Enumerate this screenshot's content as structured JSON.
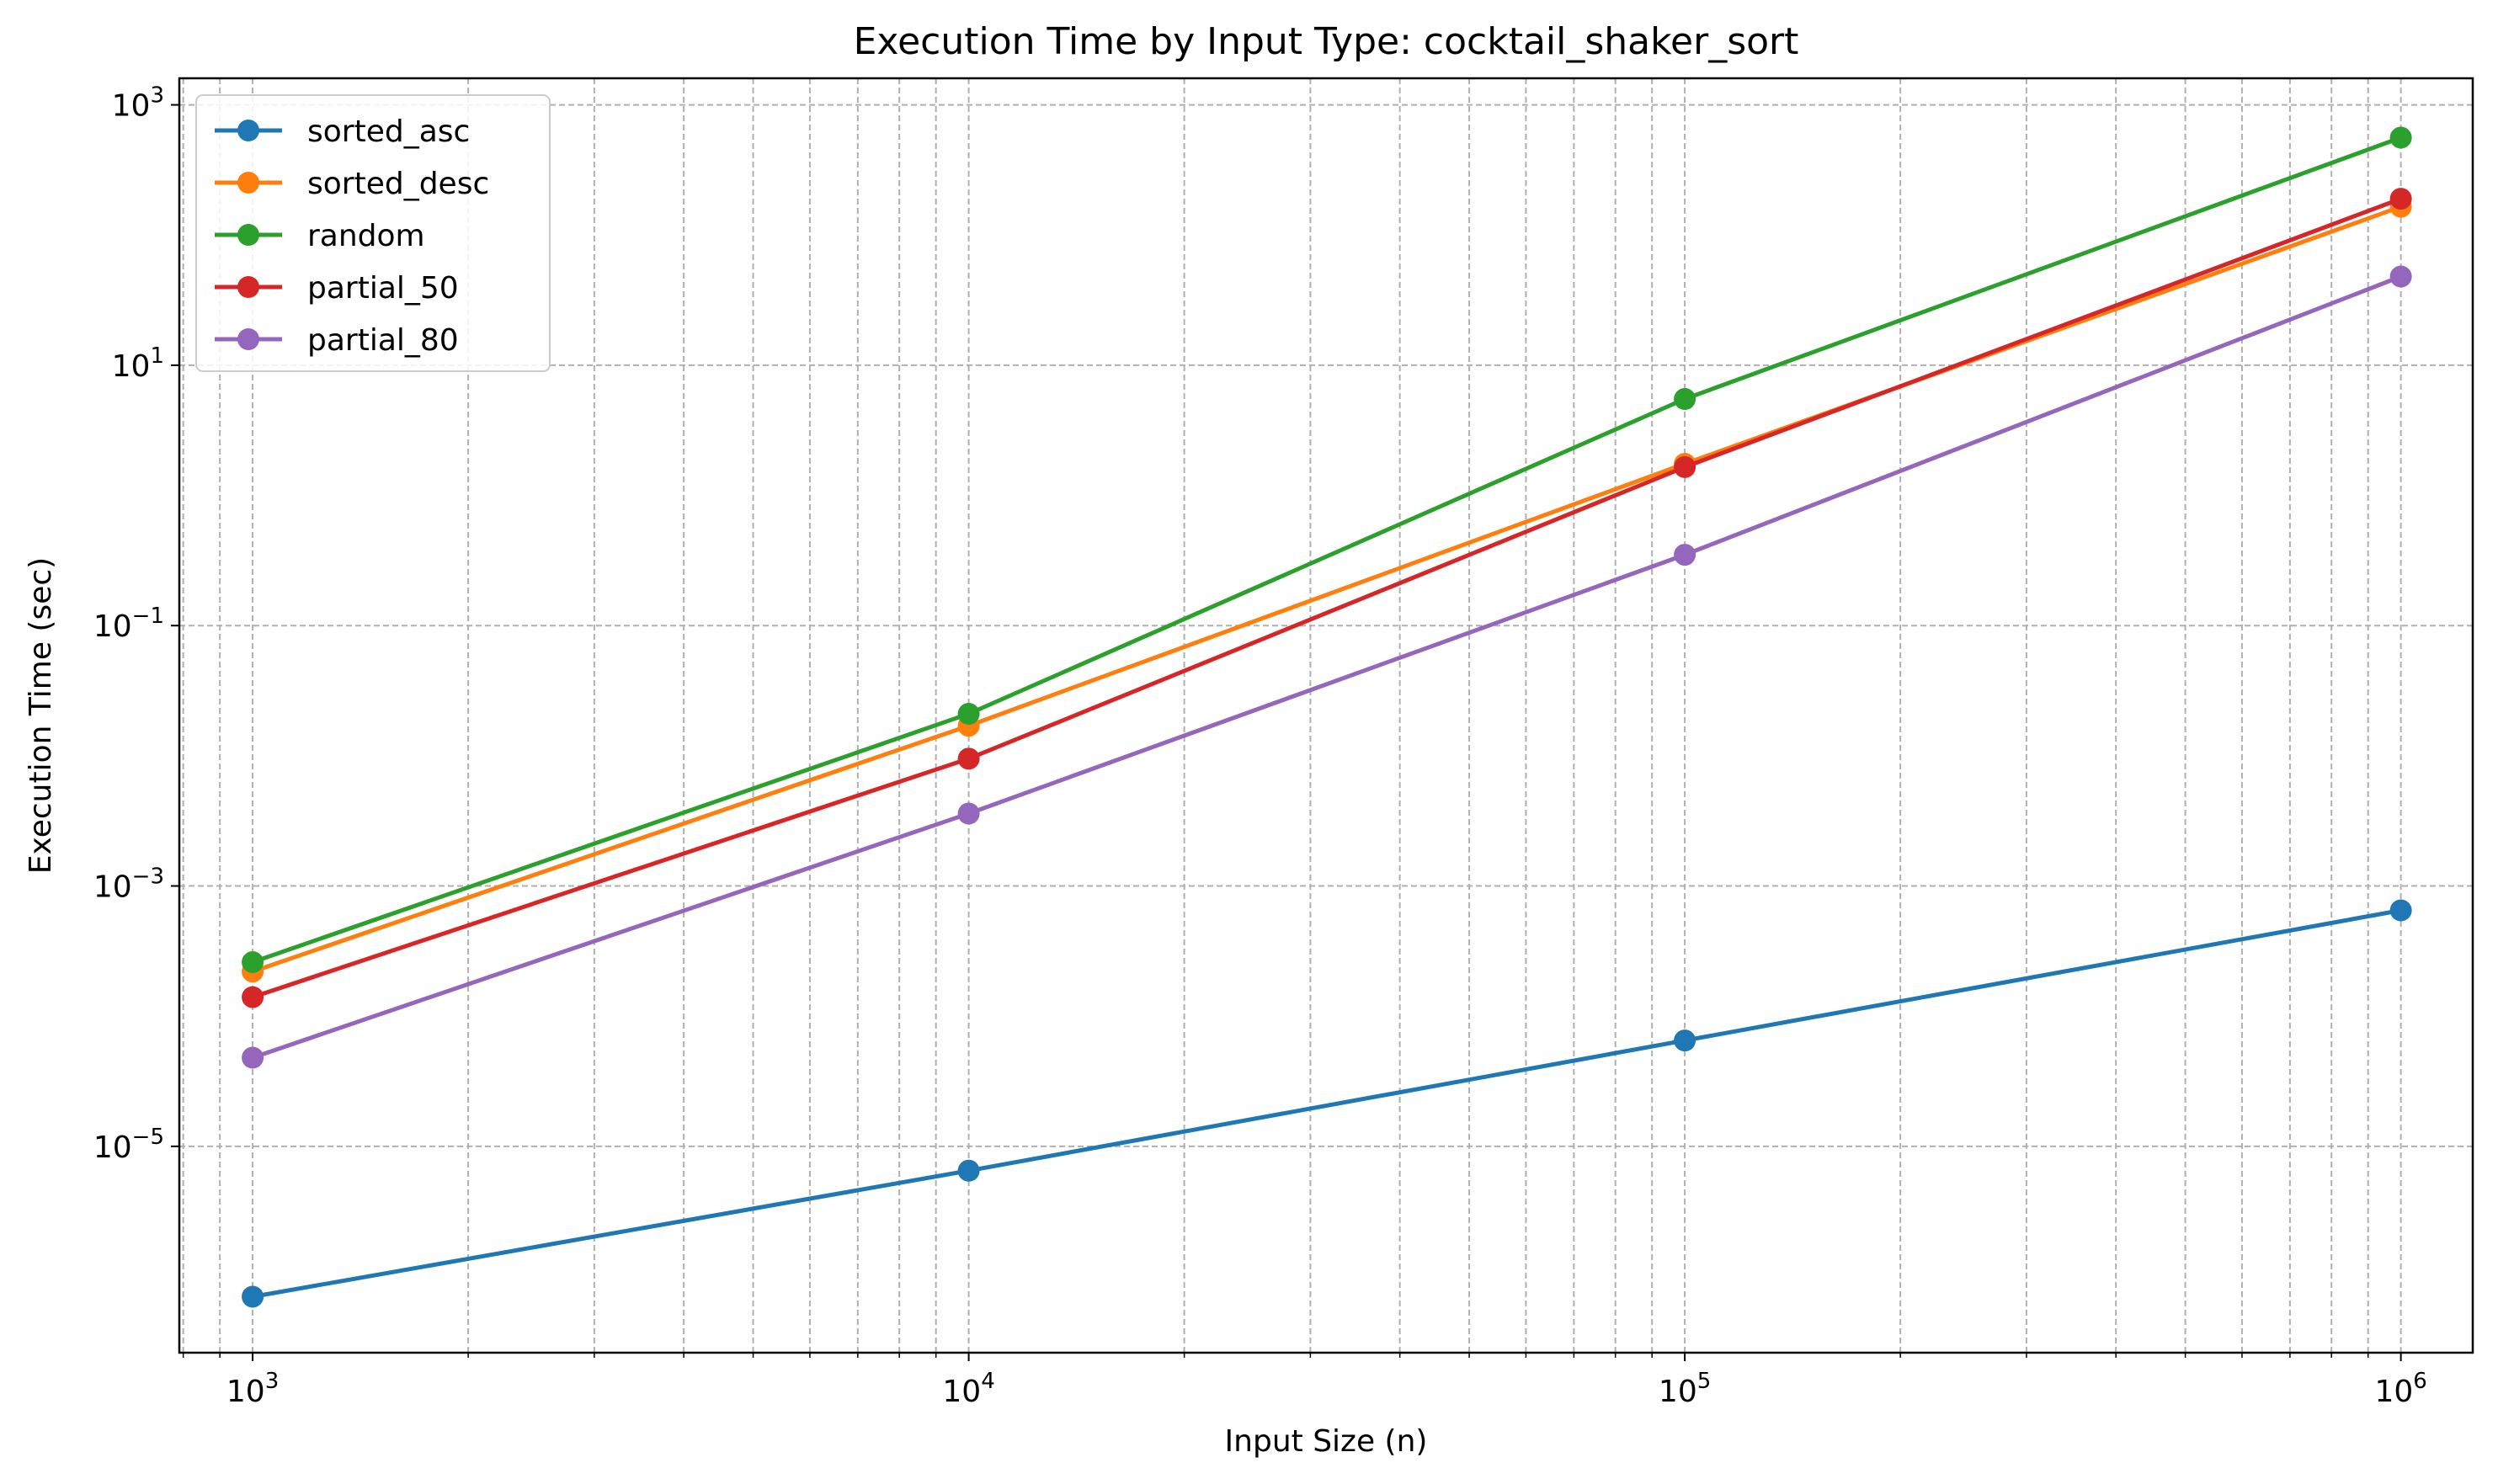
{
  "chart_data": {
    "type": "line",
    "title": "Execution Time by Input Type: cocktail_shaker_sort",
    "xlabel": "Input Size (n)",
    "ylabel": "Execution Time (sec)",
    "xscale": "log",
    "yscale": "log",
    "xlim": [
      790,
      1260000
    ],
    "ylim": [
      2.6e-07,
      1600.0
    ],
    "grid": true,
    "legend_position": "upper-left",
    "x": [
      1000,
      10000,
      100000,
      1000000
    ],
    "x_ticks": [
      {
        "value": 1000,
        "base": "10",
        "exp": "3"
      },
      {
        "value": 10000,
        "base": "10",
        "exp": "4"
      },
      {
        "value": 100000,
        "base": "10",
        "exp": "5"
      },
      {
        "value": 1000000,
        "base": "10",
        "exp": "6"
      }
    ],
    "y_ticks": [
      {
        "value": 1e-05,
        "base": "10",
        "exp": "−5"
      },
      {
        "value": 0.001,
        "base": "10",
        "exp": "−3"
      },
      {
        "value": 0.1,
        "base": "10",
        "exp": "−1"
      },
      {
        "value": 10,
        "base": "10",
        "exp": "1"
      },
      {
        "value": 1000,
        "base": "10",
        "exp": "3"
      }
    ],
    "series": [
      {
        "name": "sorted_asc",
        "color": "#1f77b4",
        "values": [
          7e-07,
          6.5e-06,
          6.5e-05,
          0.00065
        ]
      },
      {
        "name": "sorted_desc",
        "color": "#ff7f0e",
        "values": [
          0.00022,
          0.017,
          1.75,
          165
        ]
      },
      {
        "name": "random",
        "color": "#2ca02c",
        "values": [
          0.00026,
          0.021,
          5.5,
          560
        ]
      },
      {
        "name": "partial_50",
        "color": "#d62728",
        "values": [
          0.00014,
          0.0095,
          1.65,
          190
        ]
      },
      {
        "name": "partial_80",
        "color": "#9467bd",
        "values": [
          4.8e-05,
          0.0036,
          0.35,
          48
        ]
      }
    ]
  }
}
